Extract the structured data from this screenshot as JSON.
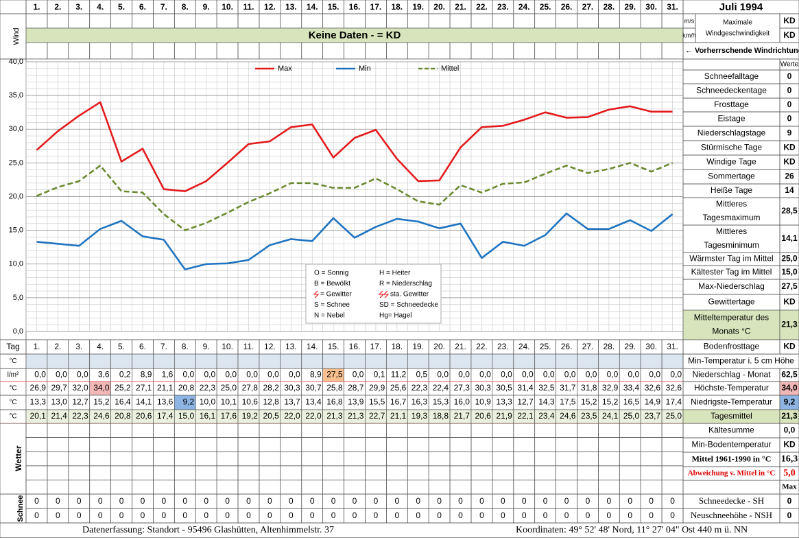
{
  "header": {
    "title": "Juli 1994",
    "days": [
      "1.",
      "2.",
      "3.",
      "4.",
      "5.",
      "6.",
      "7.",
      "8.",
      "9.",
      "10.",
      "11.",
      "12.",
      "13.",
      "14.",
      "15.",
      "16.",
      "17.",
      "18.",
      "19.",
      "20.",
      "21.",
      "22.",
      "23.",
      "24.",
      "25.",
      "26.",
      "27.",
      "28.",
      "29.",
      "30.",
      "31."
    ]
  },
  "wind": {
    "label": "Wind",
    "unit_ms": "m/s",
    "unit_kmh": "km/h",
    "max_label": [
      "Maximale",
      "Windgeschwindigkeit"
    ],
    "max_ms": "KD",
    "max_kmh": "KD",
    "no_data": "Keine Daten -  = KD",
    "direction": "← Vorherrschende Windrichtung"
  },
  "chart_data": {
    "type": "line",
    "categories": [
      "1.",
      "2.",
      "3.",
      "4.",
      "5.",
      "6.",
      "7.",
      "8.",
      "9.",
      "10.",
      "11.",
      "12.",
      "13.",
      "14.",
      "15.",
      "16.",
      "17.",
      "18.",
      "19.",
      "20.",
      "21.",
      "22.",
      "23.",
      "24.",
      "25.",
      "26.",
      "27.",
      "28.",
      "29.",
      "30.",
      "31."
    ],
    "ylim": [
      0,
      40
    ],
    "yticks": [
      {
        "value": 0,
        "label": "0,0"
      },
      {
        "value": 5,
        "label": "5,0"
      },
      {
        "value": 10,
        "label": "10,0"
      },
      {
        "value": 15,
        "label": "15,0"
      },
      {
        "value": 20,
        "label": "20,0"
      },
      {
        "value": 25,
        "label": "25,0"
      },
      {
        "value": 30,
        "label": "30,0"
      },
      {
        "value": 35,
        "label": "35,0"
      },
      {
        "value": 40,
        "label": "40,0"
      }
    ],
    "grid": true,
    "legend": "top",
    "series": [
      {
        "name": "Max",
        "color": "#e31a1c",
        "dashed": false,
        "values": [
          26.9,
          29.7,
          32.0,
          34.0,
          25.2,
          27.1,
          21.1,
          20.8,
          22.3,
          25.0,
          27.8,
          28.2,
          30.3,
          30.7,
          25.8,
          28.7,
          29.9,
          25.6,
          22.3,
          22.4,
          27.3,
          30.3,
          30.5,
          31.4,
          32.5,
          31.7,
          31.8,
          32.9,
          33.4,
          32.6,
          32.6
        ],
        "value_labels": [
          "26,9",
          "29,7",
          "32,0",
          "34,0",
          "25,2",
          "27,1",
          "21,1",
          "20,8",
          "22,3",
          "25,0",
          "27,8",
          "28,2",
          "30,3",
          "30,7",
          "25,8",
          "28,7",
          "29,9",
          "25,6",
          "22,3",
          "22,4",
          "27,3",
          "30,3",
          "30,5",
          "31,4",
          "32,5",
          "31,7",
          "31,8",
          "32,9",
          "33,4",
          "32,6",
          "32,6"
        ]
      },
      {
        "name": "Min",
        "color": "#1f74c0",
        "dashed": false,
        "values": [
          13.3,
          13.0,
          12.7,
          15.2,
          16.4,
          14.1,
          13.6,
          9.2,
          10.0,
          10.1,
          10.6,
          12.8,
          13.7,
          13.4,
          16.8,
          13.9,
          15.5,
          16.7,
          16.3,
          15.3,
          16.0,
          10.9,
          13.3,
          12.7,
          14.3,
          17.5,
          15.2,
          15.2,
          16.5,
          14.9,
          17.4
        ],
        "value_labels": [
          "13,3",
          "13,0",
          "12,7",
          "15,2",
          "16,4",
          "14,1",
          "13,6",
          "9,2",
          "10,0",
          "10,1",
          "10,6",
          "12,8",
          "13,7",
          "13,4",
          "16,8",
          "13,9",
          "15,5",
          "16,7",
          "16,3",
          "15,3",
          "16,0",
          "10,9",
          "13,3",
          "12,7",
          "14,3",
          "17,5",
          "15,2",
          "15,2",
          "16,5",
          "14,9",
          "17,4"
        ]
      },
      {
        "name": "Mittel",
        "color": "#6b8a2f",
        "dashed": true,
        "values": [
          20.1,
          21.4,
          22.3,
          24.6,
          20.8,
          20.6,
          17.4,
          15.0,
          16.1,
          17.6,
          19.2,
          20.5,
          22.0,
          22.0,
          21.3,
          21.3,
          22.7,
          21.1,
          19.3,
          18.8,
          21.7,
          20.6,
          21.9,
          22.1,
          23.4,
          24.6,
          23.5,
          24.1,
          25.0,
          23.7,
          25.0
        ],
        "value_labels": [
          "20,1",
          "21,4",
          "22,3",
          "24,6",
          "20,8",
          "20,6",
          "17,4",
          "15,0",
          "16,1",
          "17,6",
          "19,2",
          "20,5",
          "22,0",
          "22,0",
          "21,3",
          "21,3",
          "22,7",
          "21,1",
          "19,3",
          "18,8",
          "21,7",
          "20,6",
          "21,9",
          "22,1",
          "23,4",
          "24,6",
          "23,5",
          "24,1",
          "25,0",
          "23,7",
          "25,0"
        ]
      }
    ],
    "annotations": [
      "O = Sonnig",
      "H = Heiter",
      "B = Bewölkt",
      "R = Niederschlag",
      "= Gewitter",
      "sta. Gewitter",
      "S = Schnee",
      "SD = Schneedecke",
      "N = Nebel",
      "Hg= Hagel"
    ]
  },
  "stats": {
    "header": "Werte",
    "rows": [
      {
        "label": [
          "Schneefalltage"
        ],
        "value": "0"
      },
      {
        "label": [
          "Schneedeckentage"
        ],
        "value": "0"
      },
      {
        "label": [
          "Frosttage"
        ],
        "value": "0"
      },
      {
        "label": [
          "Eistage"
        ],
        "value": "0"
      },
      {
        "label": [
          "Niederschlagstage"
        ],
        "value": "9"
      },
      {
        "label": [
          "Stürmische Tage"
        ],
        "value": "KD"
      },
      {
        "label": [
          "Windige Tage"
        ],
        "value": "KD"
      },
      {
        "label": [
          "Sommertage"
        ],
        "value": "26"
      },
      {
        "label": [
          "Heiße Tage"
        ],
        "value": "14"
      },
      {
        "label": [
          "Mittleres",
          "Tagesmaximum"
        ],
        "value": "28,5"
      },
      {
        "label": [
          "Mittleres",
          "Tagesminimum"
        ],
        "value": "14,1"
      },
      {
        "label": [
          "Wärmster Tag im Mittel"
        ],
        "value": "25,0"
      },
      {
        "label": [
          "Kältester Tag im Mittel"
        ],
        "value": "15,0"
      },
      {
        "label": [
          "Max-Niederschlag"
        ],
        "value": "27,5"
      },
      {
        "label": [
          "Gewittertage"
        ],
        "value": "KD"
      },
      {
        "label": [
          "Mitteltemperatur des",
          "Monats °C"
        ],
        "value": "21,3"
      },
      {
        "label": [
          "Bodenfrosttage"
        ],
        "value": "KD"
      }
    ]
  },
  "table": {
    "tag_label": "Tag",
    "row_units": [
      "°C",
      "l/m²",
      "°C",
      "°C",
      "°C"
    ],
    "precipitation": {
      "values": [
        0,
        0,
        0,
        3.6,
        0.2,
        8.9,
        1.6,
        0,
        0,
        0,
        0,
        0,
        0,
        8.9,
        27.5,
        0,
        0.1,
        11.2,
        0.5,
        0,
        0,
        0,
        0,
        0,
        0,
        0,
        0,
        0,
        0,
        0,
        0
      ],
      "value_labels": [
        "0,0",
        "0,0",
        "0,0",
        "3,6",
        "0,2",
        "8,9",
        "1,6",
        "0,0",
        "0,0",
        "0,0",
        "0,0",
        "0,0",
        "0,0",
        "8,9",
        "27,5",
        "0,0",
        "0,1",
        "11,2",
        "0,5",
        "0,0",
        "0,0",
        "0,0",
        "0,0",
        "0,0",
        "0,0",
        "0,0",
        "0,0",
        "0,0",
        "0,0",
        "0,0",
        "0,0"
      ]
    },
    "right_rows": [
      {
        "label": "Min-Temperatur i. 5 cm Höhe"
      },
      {
        "label": "Niederschlag - Monat",
        "value": "62,5"
      },
      {
        "label": "Höchste-Temperatur",
        "value": "34,0"
      },
      {
        "label": "Niedrigste-Temperatur",
        "value": "9,2"
      },
      {
        "label": "Tagesmittel",
        "value": "21,3"
      },
      {
        "label": "Kältesumme",
        "value": "0,0"
      },
      {
        "label": "Min-Bodentemperatur",
        "value": "KD"
      },
      {
        "label": "Mittel 1961-1990 in °C",
        "value": "16,3"
      },
      {
        "label": "Abweichung v. Mittel in °C",
        "value": "5,0"
      }
    ],
    "wetter_label": "Wetter",
    "max_label": "Max",
    "snow_label": "Schnee",
    "snow_rows": [
      {
        "label": "Schneedecke -   SH",
        "values": [
          0,
          0,
          0,
          0,
          0,
          0,
          0,
          0,
          0,
          0,
          0,
          0,
          0,
          0,
          0,
          0,
          0,
          0,
          0,
          0,
          0,
          0,
          0,
          0,
          0,
          0,
          0,
          0,
          0,
          0,
          0
        ],
        "total": "0"
      },
      {
        "label": "Neuschneehöhe - NSH",
        "values": [
          0,
          0,
          0,
          0,
          0,
          0,
          0,
          0,
          0,
          0,
          0,
          0,
          0,
          0,
          0,
          0,
          0,
          0,
          0,
          0,
          0,
          0,
          0,
          0,
          0,
          0,
          0,
          0,
          0,
          0,
          0
        ],
        "total": "0"
      }
    ]
  },
  "footer": {
    "left": "Datenerfassung:  Standort -  95496  Glashütten, Altenhimmelstr. 37",
    "right": "Koordinaten:  49° 52' 48' Nord,  11° 27' 04\" Ost   440 m ü. NN"
  }
}
